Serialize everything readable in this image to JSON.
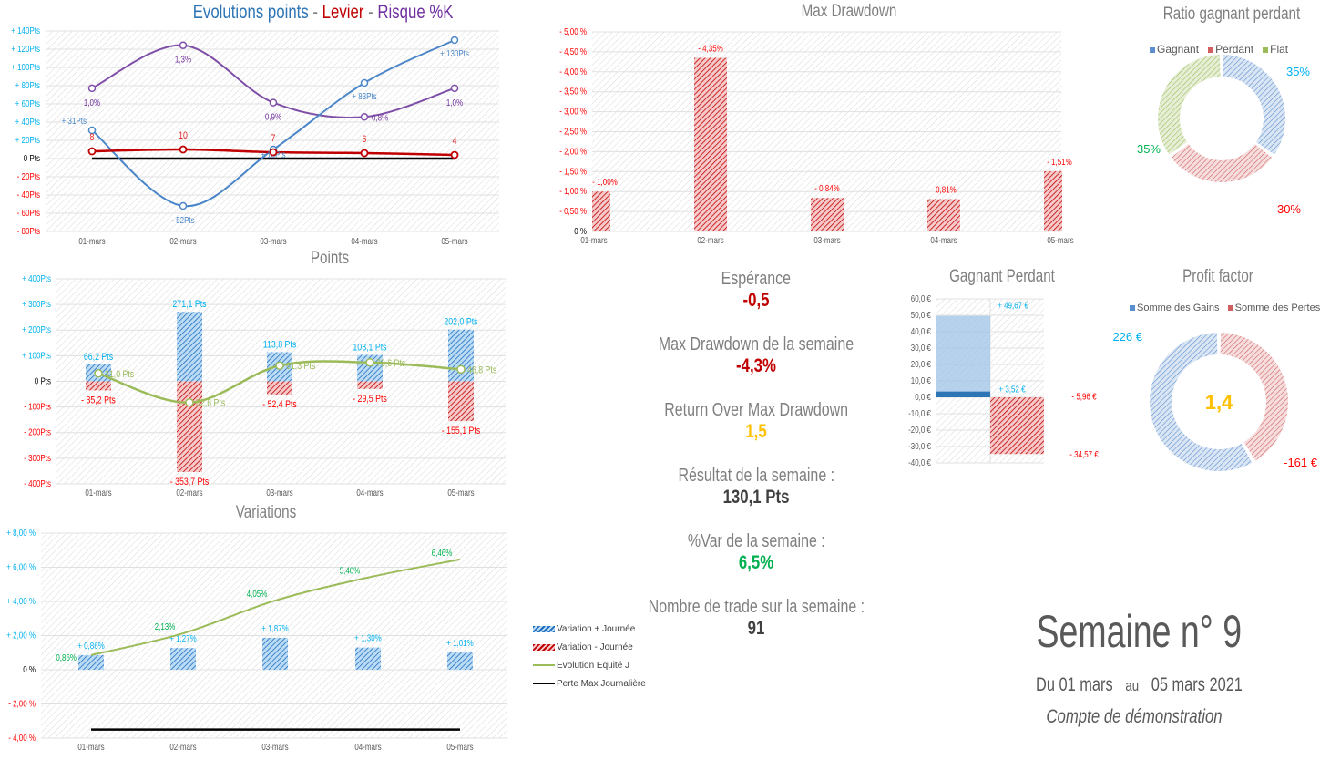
{
  "colors": {
    "blue": "#4a86c8",
    "cyan": "#00b0f0",
    "red": "#e02020",
    "darkred": "#c00000",
    "purple": "#7030a0",
    "green": "#9bbb59",
    "darkgreen": "#00b050",
    "gold": "#ffc000",
    "gray": "#7f7f7f"
  },
  "categories": [
    "01-mars",
    "02-mars",
    "03-mars",
    "04-mars",
    "05-mars"
  ],
  "chart_data": [
    {
      "id": "evolution",
      "type": "line",
      "title_parts": [
        {
          "text": "Evolutions points",
          "color": "#2e75b6"
        },
        {
          "text": " - ",
          "color": "#7f7f7f"
        },
        {
          "text": "Levier",
          "color": "#c00000"
        },
        {
          "text": " - ",
          "color": "#7f7f7f"
        },
        {
          "text": "Risque %K",
          "color": "#7030a0"
        }
      ],
      "ylim": [
        -80,
        140
      ],
      "yticks": [
        "- 80Pts",
        "- 60Pts",
        "- 40Pts",
        "- 20Pts",
        "0 Pts",
        "+ 20Pts",
        "+ 40Pts",
        "+ 60Pts",
        "+ 80Pts",
        "+ 100Pts",
        "+ 120Pts",
        "+ 140Pts"
      ],
      "series": [
        {
          "key": "points",
          "values": [
            31,
            -52,
            10,
            83,
            130
          ],
          "labels": [
            "+ 31Pts",
            "- 52Pts",
            "+ 10Pts",
            "+ 83Pts",
            "+ 130Pts"
          ],
          "color": "#4a86c8"
        },
        {
          "key": "risque",
          "values": [
            1.0,
            1.3,
            0.9,
            0.8,
            1.0
          ],
          "labels": [
            "1,0%",
            "1,3%",
            "0,9%",
            "0,8%",
            "1,0%"
          ],
          "color": "#7f4fa8",
          "secondary_ylim": [
            0,
            1.4
          ]
        },
        {
          "key": "levier",
          "values": [
            8,
            10,
            7,
            6,
            4
          ],
          "labels": [
            "8",
            "10",
            "7",
            "6",
            "4"
          ],
          "color": "#c00000"
        },
        {
          "key": "zero",
          "values": [
            0,
            0,
            0,
            0,
            0
          ],
          "color": "#000000"
        }
      ]
    },
    {
      "id": "points",
      "type": "bar",
      "title": "Points",
      "ylim": [
        -400,
        400
      ],
      "yticks": [
        "- 400Pts",
        "- 300Pts",
        "- 200Pts",
        "- 100Pts",
        "0 Pts",
        "+ 100Pts",
        "+ 200Pts",
        "+ 300Pts",
        "+ 400Pts"
      ],
      "series": [
        {
          "key": "gains",
          "values": [
            66.2,
            271.1,
            113.8,
            103.1,
            202.0
          ],
          "labels": [
            "66,2 Pts",
            "271,1 Pts",
            "113,8 Pts",
            "103,1 Pts",
            "202,0 Pts"
          ]
        },
        {
          "key": "pertes",
          "values": [
            -35.2,
            -353.7,
            -52.4,
            -29.5,
            -155.1
          ],
          "labels": [
            "- 35,2 Pts",
            "- 353,7 Pts",
            "- 52,4 Pts",
            "- 29,5 Pts",
            "- 155,1 Pts"
          ]
        },
        {
          "key": "net",
          "values": [
            31.0,
            -82.6,
            61.3,
            73.6,
            46.8
          ],
          "labels": [
            "31,0 Pts",
            "82,6 Pts",
            "61,3 Pts",
            "73,6 Pts",
            "46,8 Pts"
          ]
        }
      ]
    },
    {
      "id": "variations",
      "type": "bar",
      "title": "Variations",
      "ylim": [
        -4,
        8
      ],
      "yticks": [
        "- 4,00 %",
        "- 2,00 %",
        "0 %",
        "+ 2,00 %",
        "+ 4,00 %",
        "+ 6,00 %",
        "+ 8,00 %"
      ],
      "series": [
        {
          "key": "var_plus",
          "name": "Variation + Journée",
          "values": [
            0.86,
            1.27,
            1.87,
            1.3,
            1.01
          ],
          "labels": [
            "+ 0,86%",
            "+ 1,27%",
            "+ 1,87%",
            "+ 1,30%",
            "+ 1,01%"
          ]
        },
        {
          "key": "var_minus",
          "name": "Variation - Journée",
          "values": [
            0,
            0,
            0,
            0,
            0
          ]
        },
        {
          "key": "equity",
          "name": "Evolution  Equité J",
          "values": [
            0.86,
            2.13,
            4.05,
            5.4,
            6.46
          ],
          "labels": [
            "0,86%",
            "2,13%",
            "4,05%",
            "5,40%",
            "6,46%"
          ]
        },
        {
          "key": "perte_max",
          "name": "Perte Max Journalière",
          "values": [
            -3.5,
            -3.5,
            -3.5,
            -3.5,
            -3.5
          ]
        }
      ]
    },
    {
      "id": "drawdown",
      "type": "bar",
      "title": "Max Drawdown",
      "ylim": [
        0,
        5
      ],
      "yticks": [
        "0 %",
        "- 0,50 %",
        "- 1,00 %",
        "- 1,50 %",
        "- 2,00 %",
        "- 2,50 %",
        "- 3,00 %",
        "- 3,50 %",
        "- 4,00 %",
        "- 4,50 %",
        "- 5,00 %"
      ],
      "values": [
        1.0,
        4.35,
        0.84,
        0.81,
        1.51
      ],
      "labels": [
        "- 1,00%",
        "- 4,35%",
        "- 0,84%",
        "- 0,81%",
        "- 1,51%"
      ]
    },
    {
      "id": "ratio",
      "type": "pie",
      "title": "Ratio gagnant perdant",
      "legend": [
        "Gagnant",
        "Perdant",
        "Flat"
      ],
      "values": [
        35,
        30,
        35
      ],
      "labels": [
        "35%",
        "30%",
        "35%"
      ]
    },
    {
      "id": "gagnant_perdant",
      "type": "bar",
      "title": "Gagnant Perdant",
      "ylim": [
        -40,
        60
      ],
      "yticks": [
        "-40,0 €",
        "-30,0 €",
        "-20,0 €",
        "-10,0 €",
        "0,0 €",
        "10,0 €",
        "20,0 €",
        "30,0 €",
        "40,0 €",
        "50,0 €",
        "60,0 €"
      ],
      "values": {
        "gain_max": 49.67,
        "gain_moyen": 3.52,
        "perte_moyenne": -5.96,
        "perte_max": -34.57
      },
      "labels": {
        "gain_max": "+ 49,67 €",
        "gain_moyen": "+ 3,52 €",
        "perte_moyenne": "- 5,96 €",
        "perte_max": "- 34,57 €"
      }
    },
    {
      "id": "profit_factor",
      "type": "pie",
      "title": "Profit factor",
      "legend": [
        "Somme des Gains",
        "Somme des Pertes"
      ],
      "values": [
        226,
        161
      ],
      "labels": [
        "226 €",
        "-161 €"
      ],
      "center": "1,4"
    }
  ],
  "stats": [
    {
      "label": "Espérance",
      "value": "-0,5",
      "color": "#c00000"
    },
    {
      "label": "Max Drawdown de la semaine",
      "value": "-4,3%",
      "color": "#c00000"
    },
    {
      "label": "Return Over Max Drawdown",
      "value": "1,5",
      "color": "#ffc000"
    },
    {
      "label": "Résultat de la semaine :",
      "value": "130,1 Pts",
      "color": "#404040"
    },
    {
      "label": "%Var de la semaine :",
      "value": "6,5%",
      "color": "#00b050"
    },
    {
      "label": "Nombre de trade sur la semaine :",
      "value": "91",
      "color": "#404040"
    }
  ],
  "week": {
    "title": "Semaine n° 9",
    "du": "Du 01 mars",
    "au": "au",
    "to": "05 mars 2021",
    "account": "Compte de démonstration"
  }
}
